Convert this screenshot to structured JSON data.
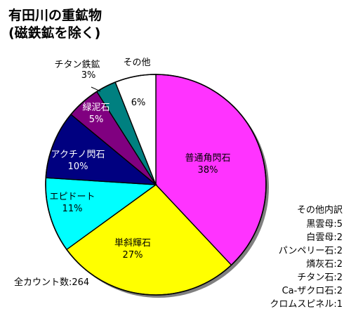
{
  "title_line1": "有田川の重鉱物",
  "title_line2": "(磁鉄鉱を除く)",
  "total_label": "全カウント数:264",
  "other_breakdown": {
    "heading": "その他内訳",
    "items": [
      {
        "name": "黒雲母",
        "count": 5
      },
      {
        "name": "白雲母",
        "count": 2
      },
      {
        "name": "パンペリー石",
        "count": 2
      },
      {
        "name": "燐灰石",
        "count": 2
      },
      {
        "name": "チタン石",
        "count": 2
      },
      {
        "name": "Ca-ザクロ石",
        "count": 2
      },
      {
        "name": "クロムスピネル",
        "count": 1
      }
    ]
  },
  "chart_data": {
    "type": "pie",
    "title": "有田川の重鉱物 (磁鉄鉱を除く)",
    "total": 264,
    "start": "12 o'clock, clockwise",
    "slices": [
      {
        "label": "普通角閃石",
        "value": 38,
        "value_label": "38%",
        "color": "#ff33ff",
        "label_color": "#000000"
      },
      {
        "label": "単斜輝石",
        "value": 27,
        "value_label": "27%",
        "color": "#ffff00",
        "label_color": "#000000"
      },
      {
        "label": "エピドート",
        "value": 11,
        "value_label": "11%",
        "color": "#00ffff",
        "label_color": "#000000"
      },
      {
        "label": "アクチノ閃石",
        "value": 10,
        "value_label": "10%",
        "color": "#000080",
        "label_color": "#ffffff"
      },
      {
        "label": "緑泥石",
        "value": 5,
        "value_label": "5%",
        "color": "#800080",
        "label_color": "#ffffff"
      },
      {
        "label": "チタン鉄鉱",
        "value": 3,
        "value_label": "3%",
        "color": "#008080",
        "label_color": "#000000"
      },
      {
        "label": "その他",
        "value": 6,
        "value_label": "6%",
        "color": "#ffffff",
        "label_color": "#000000"
      }
    ]
  }
}
